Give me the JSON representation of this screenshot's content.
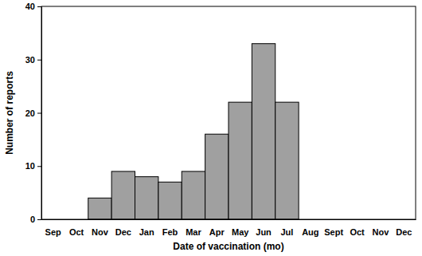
{
  "chart_data": {
    "type": "bar",
    "x_label": "Date of vaccination (mo)",
    "y_label": "Number of reports",
    "categories": [
      "Sep",
      "Oct",
      "Nov",
      "Dec",
      "Jan",
      "Feb",
      "Mar",
      "Apr",
      "May",
      "Jun",
      "Jul",
      "Aug",
      "Sept",
      "Oct",
      "Nov",
      "Dec"
    ],
    "values": [
      0,
      0,
      4,
      9,
      8,
      7,
      9,
      16,
      22,
      33,
      22,
      0,
      0,
      0,
      0,
      0
    ],
    "color": "#a0a0a0",
    "ylim": [
      0,
      40
    ],
    "yticks": [
      0,
      10,
      20,
      30,
      40
    ],
    "grid": false
  }
}
